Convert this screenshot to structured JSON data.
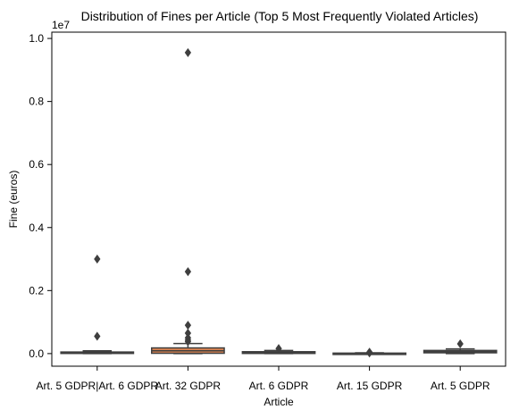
{
  "chart_data": {
    "type": "box",
    "title": "Distribution of Fines per Article (Top 5 Most Frequently Violated Articles)",
    "xlabel": "Article",
    "ylabel": "Fine (euros)",
    "y_multiplier_label": "1e7",
    "ylim": [
      -400000,
      10200000
    ],
    "y_ticks": [
      {
        "value": 0,
        "label": "0.0"
      },
      {
        "value": 2000000,
        "label": "0.2"
      },
      {
        "value": 4000000,
        "label": "0.4"
      },
      {
        "value": 6000000,
        "label": "0.6"
      },
      {
        "value": 8000000,
        "label": "0.8"
      },
      {
        "value": 10000000,
        "label": "1.0"
      }
    ],
    "categories": [
      "Art. 5 GDPR|Art. 6 GDPR",
      "Art. 32 GDPR",
      "Art. 6 GDPR",
      "Art. 15 GDPR",
      "Art. 5 GDPR"
    ],
    "series": [
      {
        "category": "Art. 5 GDPR|Art. 6 GDPR",
        "color": "#4c72b0",
        "q1": 5000,
        "median": 20000,
        "q3": 50000,
        "whisker_low": 0,
        "whisker_high": 90000,
        "outliers": [
          3000000,
          550000
        ]
      },
      {
        "category": "Art. 32 GDPR",
        "color": "#dd8452",
        "q1": 10000,
        "median": 90000,
        "q3": 180000,
        "whisker_low": 0,
        "whisker_high": 320000,
        "outliers": [
          9550000,
          2600000,
          900000,
          650000,
          500000,
          430000,
          380000
        ]
      },
      {
        "category": "Art. 6 GDPR",
        "color": "#55a868",
        "q1": 5000,
        "median": 20000,
        "q3": 60000,
        "whisker_low": 0,
        "whisker_high": 100000,
        "outliers": [
          160000
        ]
      },
      {
        "category": "Art. 15 GDPR",
        "color": "#c44e52",
        "q1": 0,
        "median": 5000,
        "q3": 15000,
        "whisker_low": 0,
        "whisker_high": 25000,
        "outliers": [
          45000,
          20000
        ]
      },
      {
        "category": "Art. 5 GDPR",
        "color": "#8172b3",
        "q1": 25000,
        "median": 60000,
        "q3": 100000,
        "whisker_low": 0,
        "whisker_high": 150000,
        "outliers": [
          310000
        ]
      }
    ]
  }
}
